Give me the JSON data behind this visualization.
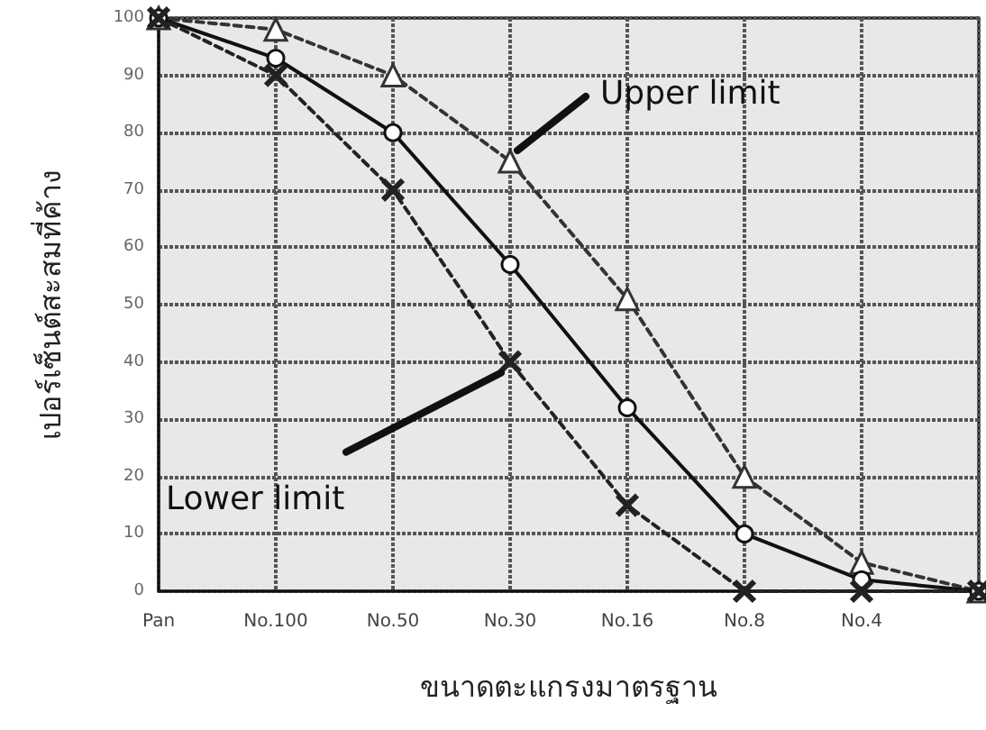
{
  "chart_data": {
    "type": "line",
    "xlabel": "ขนาดตะแกรงมาตรฐาน",
    "ylabel": "เปอร์เซ็นต์สะสมที่ค้าง",
    "categories": [
      "Pan",
      "No.100",
      "No.50",
      "No.30",
      "No.16",
      "No.8",
      "No.4",
      null
    ],
    "series": [
      {
        "color": "#333333",
        "marker": "triangle",
        "line_style": "dashed",
        "values": [
          100,
          98,
          90,
          75,
          51,
          20,
          5,
          0
        ]
      },
      {
        "color": "#111111",
        "marker": "circle",
        "line_style": "solid",
        "values": [
          100,
          93,
          80,
          57,
          32,
          10,
          2,
          0
        ]
      },
      {
        "color": "#222222",
        "marker": "cross",
        "line_style": "dashed",
        "values": [
          100,
          90,
          70,
          40,
          15,
          0,
          0,
          0
        ]
      }
    ],
    "ylim": [
      0,
      100
    ],
    "yticks": [
      0,
      10,
      20,
      30,
      40,
      50,
      60,
      70,
      80,
      90,
      100
    ],
    "grid": true,
    "annotations": [
      {
        "text": "Upper limit",
        "x": "No.30",
        "y": 75
      },
      {
        "text": "Lower limit",
        "x": "No.30",
        "y": 40
      }
    ]
  }
}
